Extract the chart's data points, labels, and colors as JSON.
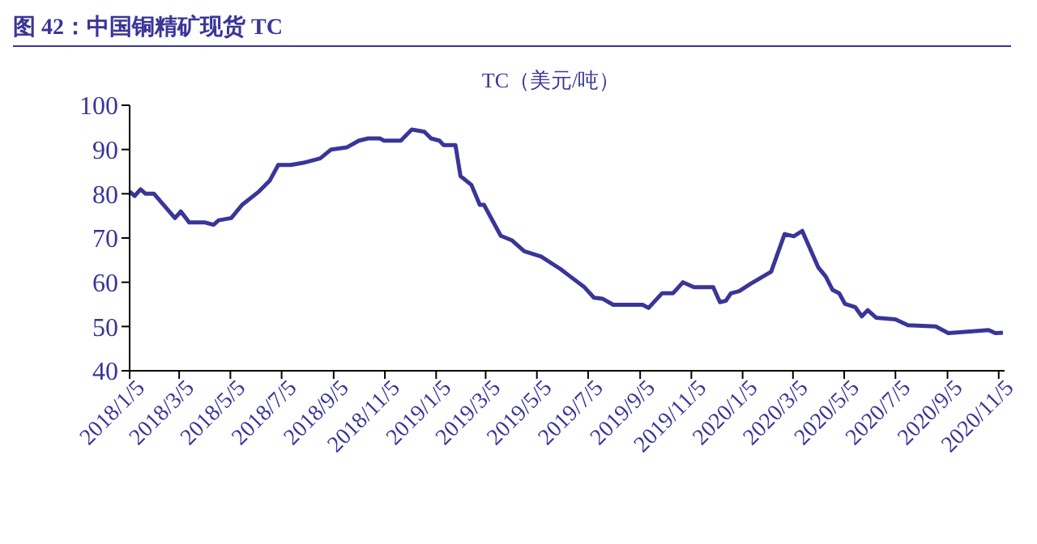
{
  "chart_data": {
    "type": "line",
    "title": "图 42：中国铜精矿现货 TC",
    "ylabel": "TC（美元/吨）",
    "x": [
      "2018-01-05",
      "2018-01-11",
      "2018-01-18",
      "2018-01-24",
      "2018-02-03",
      "2018-02-28",
      "2018-03-07",
      "2018-03-17",
      "2018-04-05",
      "2018-04-15",
      "2018-04-21",
      "2018-05-06",
      "2018-05-19",
      "2018-06-08",
      "2018-06-21",
      "2018-07-01",
      "2018-07-16",
      "2018-07-31",
      "2018-08-20",
      "2018-09-02",
      "2018-09-21",
      "2018-10-05",
      "2018-10-16",
      "2018-10-30",
      "2018-11-04",
      "2018-11-24",
      "2018-12-07",
      "2018-12-22",
      "2018-12-30",
      "2019-01-09",
      "2019-01-14",
      "2019-01-28",
      "2019-02-03",
      "2019-02-16",
      "2019-02-26",
      "2019-03-03",
      "2019-03-23",
      "2019-04-05",
      "2019-04-20",
      "2019-05-10",
      "2019-06-02",
      "2019-06-11",
      "2019-06-30",
      "2019-07-12",
      "2019-07-22",
      "2019-08-04",
      "2019-09-08",
      "2019-09-15",
      "2019-10-01",
      "2019-10-14",
      "2019-10-26",
      "2019-11-08",
      "2019-12-01",
      "2019-12-09",
      "2019-12-16",
      "2019-12-22",
      "2020-01-01",
      "2020-01-14",
      "2020-02-08",
      "2020-02-24",
      "2020-03-06",
      "2020-03-16",
      "2020-04-04",
      "2020-04-13",
      "2020-04-21",
      "2020-04-29",
      "2020-05-06",
      "2020-05-18",
      "2020-05-26",
      "2020-06-02",
      "2020-06-12",
      "2020-07-05",
      "2020-07-20",
      "2020-08-22",
      "2020-09-06",
      "2020-10-24",
      "2020-11-01",
      "2020-11-10"
    ],
    "series": [
      {
        "color": "#3a3598",
        "values": [
          80.5,
          79.5,
          81,
          80,
          80,
          74.5,
          76,
          73.5,
          73.5,
          73,
          74,
          74.5,
          77.5,
          80.5,
          83,
          86.5,
          86.5,
          87,
          88,
          90,
          90.5,
          92,
          92.5,
          92.5,
          92,
          92,
          94.5,
          94,
          92.5,
          92,
          91,
          91,
          84,
          82,
          77.5,
          77.5,
          70.5,
          69.5,
          67,
          65.8,
          63,
          61.7,
          59,
          56.5,
          56.3,
          54.9,
          54.9,
          54.2,
          57.5,
          57.5,
          60,
          58.9,
          58.9,
          55.5,
          55.8,
          57.5,
          58,
          59.6,
          62.4,
          70.9,
          70.4,
          71.6,
          63.4,
          61.3,
          58.3,
          57.5,
          55.1,
          54.4,
          52.3,
          53.7,
          52,
          51.6,
          50.3,
          50,
          48.5,
          49.2,
          48.5,
          48.6
        ]
      }
    ],
    "xlim": [
      "2018-01-05",
      "2020-11-12"
    ],
    "xticks": [
      {
        "value": "2018-01-05",
        "label": "2018/1/5"
      },
      {
        "value": "2018-03-05",
        "label": "2018/3/5"
      },
      {
        "value": "2018-05-05",
        "label": "2018/5/5"
      },
      {
        "value": "2018-07-05",
        "label": "2018/7/5"
      },
      {
        "value": "2018-09-05",
        "label": "2018/9/5"
      },
      {
        "value": "2018-11-05",
        "label": "2018/11/5"
      },
      {
        "value": "2019-01-05",
        "label": "2019/1/5"
      },
      {
        "value": "2019-03-05",
        "label": "2019/3/5"
      },
      {
        "value": "2019-05-05",
        "label": "2019/5/5"
      },
      {
        "value": "2019-07-05",
        "label": "2019/7/5"
      },
      {
        "value": "2019-09-05",
        "label": "2019/9/5"
      },
      {
        "value": "2019-11-05",
        "label": "2019/11/5"
      },
      {
        "value": "2020-01-05",
        "label": "2020/1/5"
      },
      {
        "value": "2020-03-05",
        "label": "2020/3/5"
      },
      {
        "value": "2020-05-05",
        "label": "2020/5/5"
      },
      {
        "value": "2020-07-05",
        "label": "2020/7/5"
      },
      {
        "value": "2020-09-05",
        "label": "2020/9/5"
      },
      {
        "value": "2020-11-05",
        "label": "2020/11/5"
      }
    ],
    "ylim": [
      40,
      100
    ],
    "yticks": [
      40,
      50,
      60,
      70,
      80,
      90,
      100
    ],
    "grid": false,
    "legend": false,
    "marker": "none",
    "line_style": "solid"
  }
}
